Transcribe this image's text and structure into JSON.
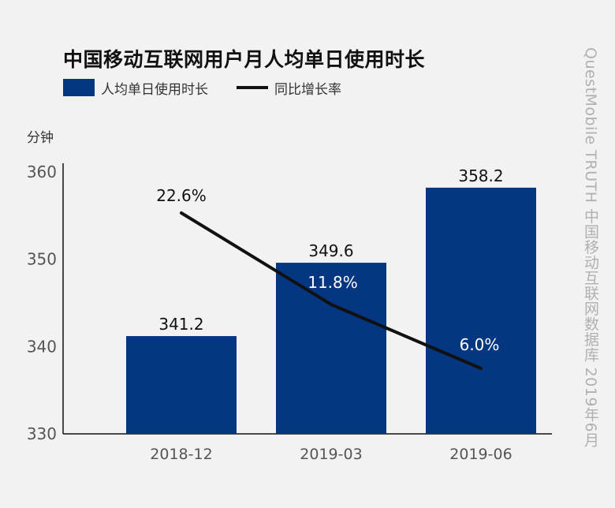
{
  "title": "中国移动互联网用户月人均单日使用时长",
  "legend": {
    "bar_label": "人均单日使用时长",
    "line_label": "同比增长率"
  },
  "unit_label": "分钟",
  "watermark": "QuestMobile TRUTH 中国移动互联网数据库 2019年6月",
  "colors": {
    "bar": "#043682",
    "line": "#111111"
  },
  "chart_data": {
    "type": "bar",
    "categories": [
      "2018-12",
      "2019-03",
      "2019-06"
    ],
    "series": [
      {
        "name": "人均单日使用时长",
        "type": "bar",
        "values": [
          341.2,
          349.6,
          358.2
        ],
        "labels": [
          "341.2",
          "349.6",
          "358.2"
        ]
      },
      {
        "name": "同比增长率",
        "type": "line",
        "values": [
          22.6,
          11.8,
          6.0
        ],
        "labels": [
          "22.6%",
          "11.8%",
          "6.0%"
        ]
      }
    ],
    "ylabel": "分钟",
    "ylim": [
      330,
      360
    ],
    "yticks": [
      330,
      340,
      350,
      360
    ],
    "grid": false,
    "legend_position": "top-left"
  }
}
